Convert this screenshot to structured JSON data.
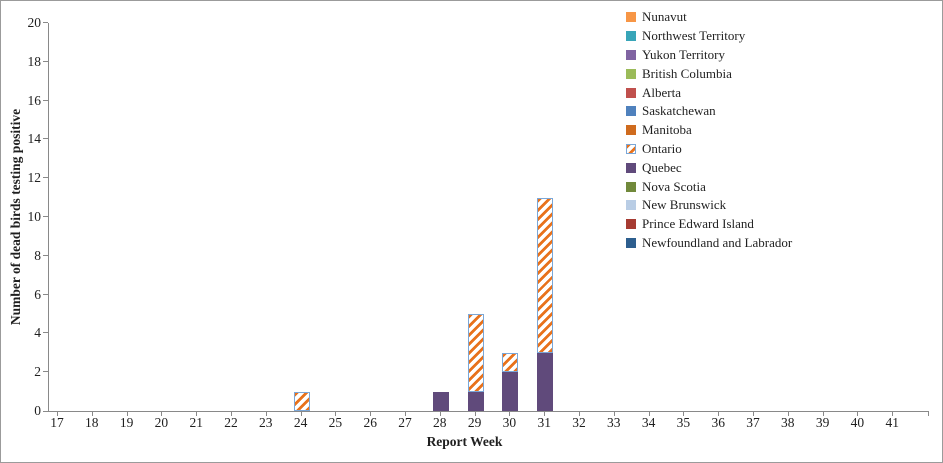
{
  "chart_data": {
    "type": "bar",
    "stacked": true,
    "title": "",
    "xlabel": "Report Week",
    "ylabel": "Number of dead birds testing positive",
    "ylim": [
      0,
      20
    ],
    "ytick_step": 2,
    "categories": [
      17,
      18,
      19,
      20,
      21,
      22,
      23,
      24,
      25,
      26,
      27,
      28,
      29,
      30,
      31,
      32,
      33,
      34,
      35,
      36,
      37,
      38,
      39,
      40,
      41
    ],
    "grid": false,
    "legend_position": "top-right",
    "axis_color": "#898989",
    "text_color": "#1f1f1f",
    "series": [
      {
        "name": "Nunavut",
        "color": "#F79646",
        "pattern": "solid",
        "data": {}
      },
      {
        "name": "Northwest Territory",
        "color": "#38A5B8",
        "pattern": "solid",
        "data": {}
      },
      {
        "name": "Yukon Territory",
        "color": "#8064A2",
        "pattern": "solid",
        "data": {}
      },
      {
        "name": "British Columbia",
        "color": "#9BBB59",
        "pattern": "solid",
        "data": {}
      },
      {
        "name": "Alberta",
        "color": "#C0504D",
        "pattern": "solid",
        "data": {}
      },
      {
        "name": "Saskatchewan",
        "color": "#4F81BD",
        "pattern": "solid",
        "data": {}
      },
      {
        "name": "Manitoba",
        "color": "#CF6B1E",
        "pattern": "solid",
        "data": {}
      },
      {
        "name": "Ontario",
        "color": "#E8721C",
        "pattern": "hatch",
        "border_color": "#7BA7D7",
        "data": {
          "24": 1,
          "29": 4,
          "30": 1,
          "31": 8
        }
      },
      {
        "name": "Quebec",
        "color": "#604A7B",
        "pattern": "solid",
        "data": {
          "28": 1,
          "29": 1,
          "30": 2,
          "31": 3
        }
      },
      {
        "name": "Nova Scotia",
        "color": "#71893B",
        "pattern": "solid",
        "data": {}
      },
      {
        "name": "New Brunswick",
        "color": "#B9CDE5",
        "pattern": "solid",
        "data": {}
      },
      {
        "name": "Prince Edward Island",
        "color": "#A63B32",
        "pattern": "solid",
        "data": {}
      },
      {
        "name": "Newfoundland and Labrador",
        "color": "#2D5E8E",
        "pattern": "solid",
        "data": {}
      }
    ]
  }
}
